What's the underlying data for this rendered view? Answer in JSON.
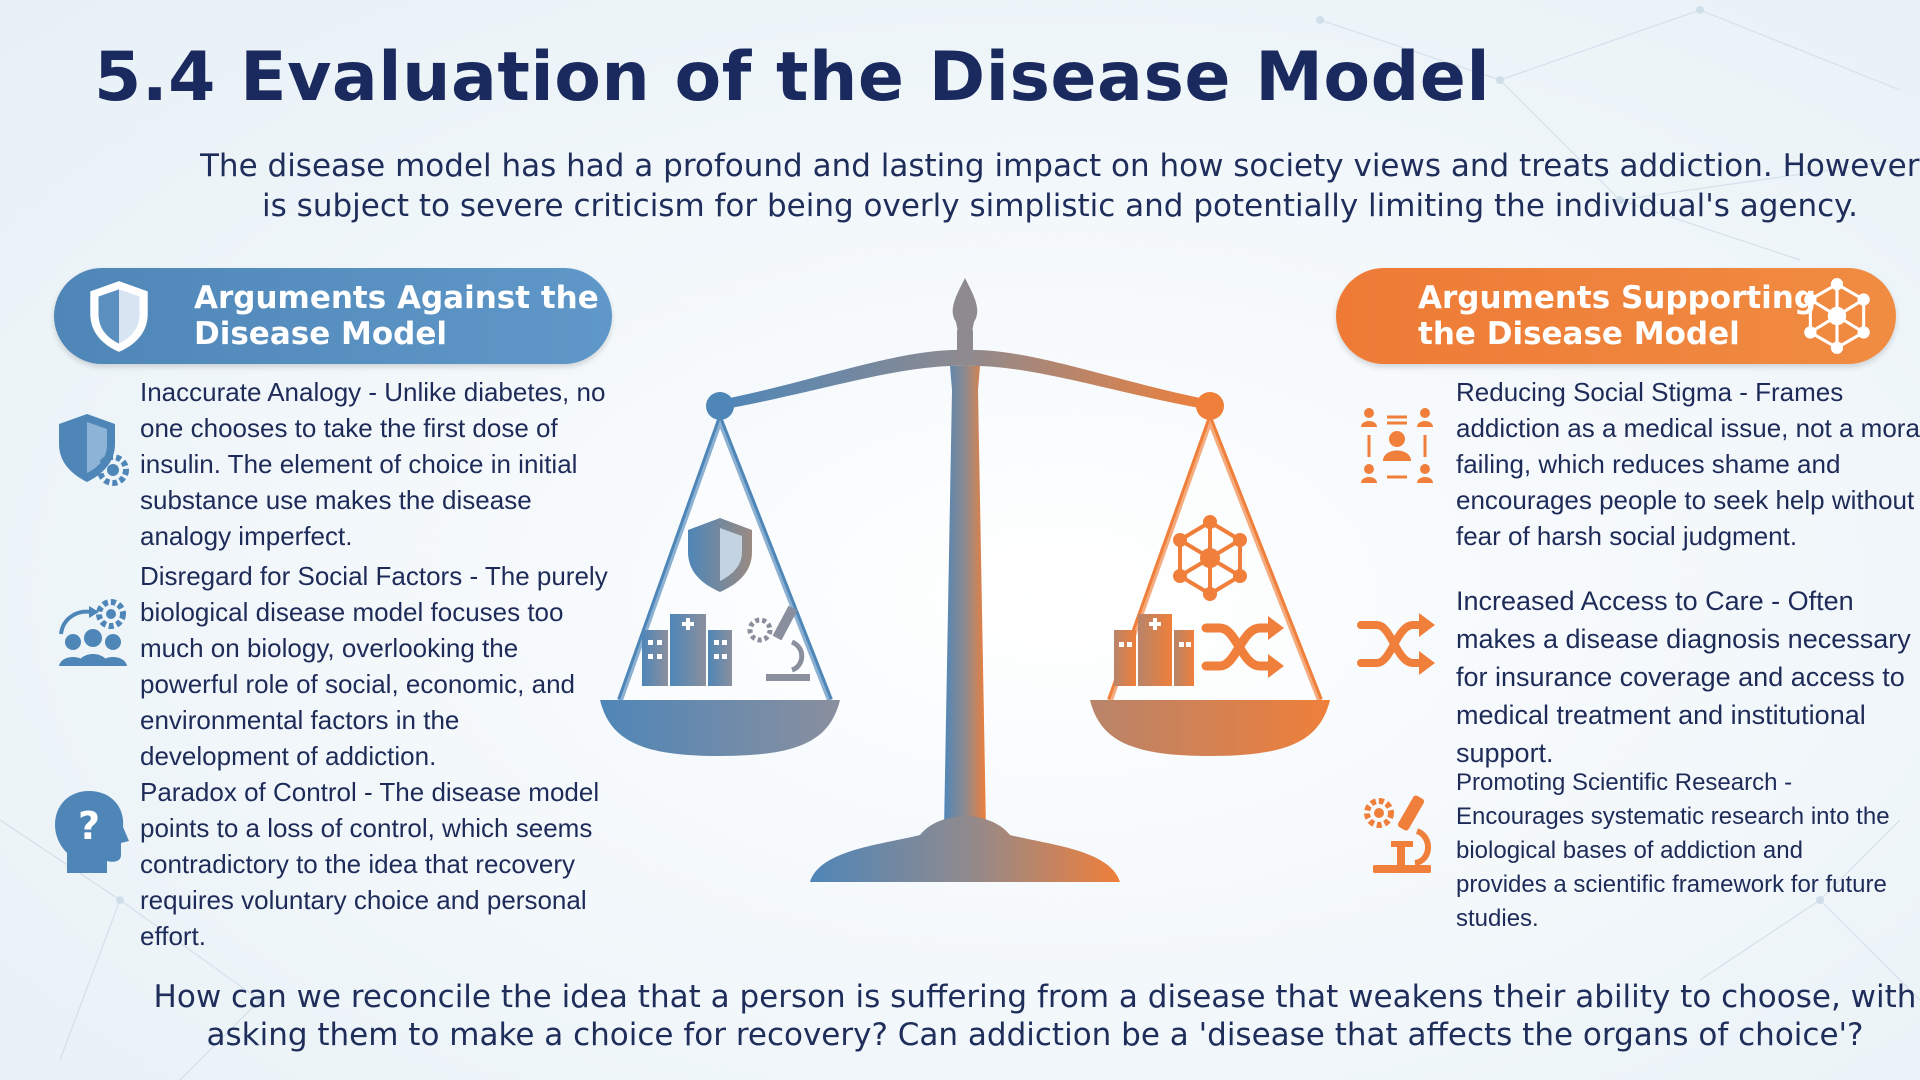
{
  "slide": {
    "title": "5.4 Evaluation of the Disease Model",
    "intro_line1": "The disease model has had a profound and lasting impact on how society views and treats addiction. However, it",
    "intro_line2": "is subject to severe criticism for being overly simplistic and potentially limiting the individual's agency.",
    "question_line1": "How can we reconcile the idea that a person is suffering from a disease that weakens their ability to choose, with",
    "question_line2": "asking them to make a choice for recovery? Can addiction be a 'disease that affects the organs of choice'?"
  },
  "against": {
    "heading_line1": "Arguments Against the",
    "heading_line2": "Disease Model",
    "items": [
      {
        "text": "Inaccurate Analogy - Unlike diabetes, no one chooses to take the first dose of insulin. The element of choice in initial substance use makes the disease analogy imperfect.",
        "icon": "shield-gear-icon"
      },
      {
        "text": "Disregard for Social Factors - The purely biological disease model focuses too much on biology, overlooking the powerful role of social, economic, and environmental factors in the development of addiction.",
        "icon": "people-gear-icon"
      },
      {
        "text": "Paradox of Control - The disease model points to a loss of control, which seems contradictory to the idea that recovery requires voluntary choice and personal effort.",
        "icon": "head-question-icon"
      }
    ]
  },
  "supporting": {
    "heading_line1": "Arguments Supporting",
    "heading_line2": "the Disease Model",
    "items": [
      {
        "text": "Reducing Social Stigma - Frames addiction as a medical issue, not a moral failing, which reduces shame and encourages people to seek help without fear of harsh social judgment.",
        "icon": "group-network-icon"
      },
      {
        "text": "Increased Access to Care - Often makes a disease diagnosis necessary for insurance coverage and access to medical treatment and institutional support.",
        "icon": "shuffle-arrows-icon"
      },
      {
        "text": "Promoting Scientific Research - Encourages systematic research into the biological bases of addiction and provides a scientific framework for future studies.",
        "icon": "microscope-gear-icon"
      }
    ]
  },
  "colors": {
    "blue": "#4f86b8",
    "orange": "#ef7f3a",
    "navy": "#1b2a5e"
  }
}
